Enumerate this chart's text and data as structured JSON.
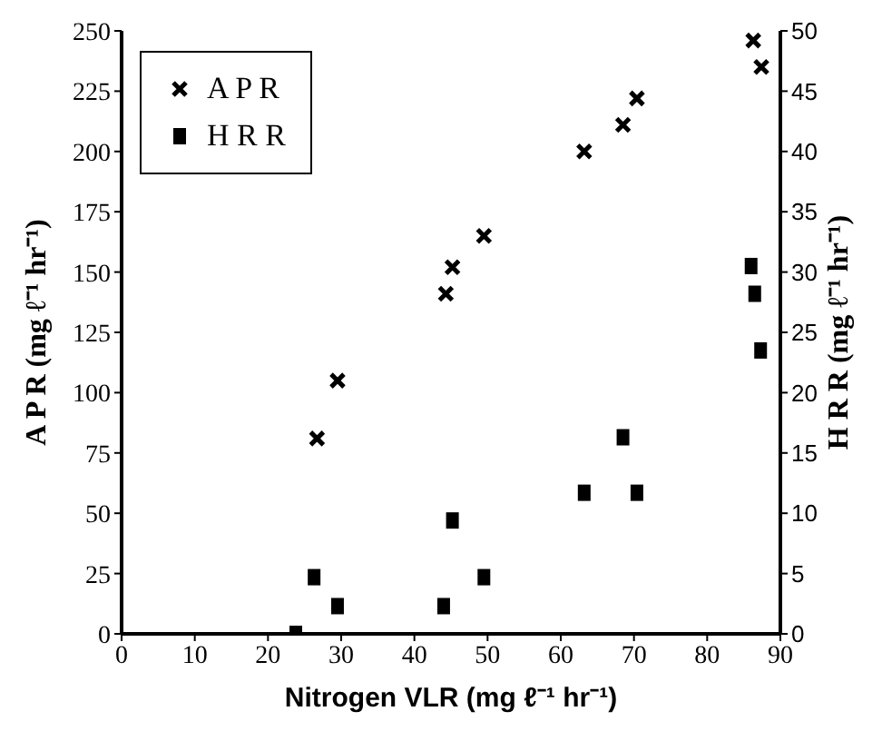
{
  "chart_data": {
    "type": "scatter",
    "xlabel": "Nitrogen VLR (mg ℓ⁻¹ hr⁻¹)",
    "ylabel": "A P R  (mg ℓ⁻¹ hr⁻¹)",
    "y2label": "H R R  (mg ℓ⁻¹ hr⁻¹)",
    "xlim": [
      0,
      90
    ],
    "xticks": [
      0,
      10,
      20,
      30,
      40,
      50,
      60,
      70,
      80,
      90
    ],
    "ylim": [
      0,
      250
    ],
    "yticks": [
      0,
      25,
      50,
      75,
      100,
      125,
      150,
      175,
      200,
      225,
      250
    ],
    "y2lim": [
      0,
      50
    ],
    "y2ticks": [
      0,
      5,
      10,
      15,
      20,
      25,
      30,
      35,
      40,
      45,
      50
    ],
    "grid": false,
    "legend": "top left",
    "series": [
      {
        "name": "A P R",
        "color": "#000000",
        "marker": "cross",
        "x": [
          26.7,
          29.5,
          44.3,
          45.2,
          49.5,
          63.2,
          68.5,
          70.4,
          86.3,
          87.4
        ],
        "values": [
          81,
          105,
          141,
          152,
          165,
          200,
          211,
          222,
          246,
          235
        ]
      },
      {
        "name": "H R R",
        "color": "#000000",
        "marker": "square",
        "axis": "y2",
        "x": [
          23.8,
          26.3,
          29.5,
          44.0,
          45.2,
          49.5,
          63.2,
          68.5,
          70.4,
          86.0,
          86.5,
          87.3
        ],
        "values": [
          0,
          4.7,
          2.3,
          2.3,
          9.4,
          4.7,
          11.7,
          16.3,
          11.7,
          30.5,
          28.2,
          23.5
        ]
      }
    ]
  }
}
